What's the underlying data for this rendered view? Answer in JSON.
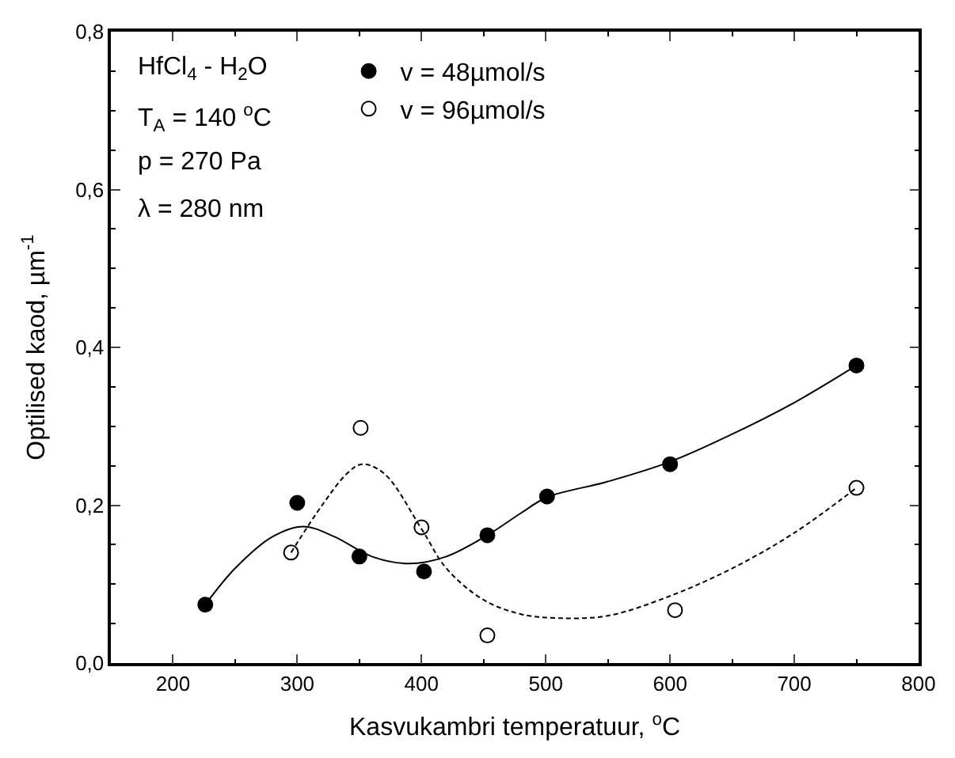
{
  "chart_data": {
    "type": "scatter",
    "xlabel": "Kasvukambri temperatuur, $^{o}$C",
    "ylabel": "Optilised kaod, µm$^{-1}$",
    "annotations": [
      "HfCl$_{4}$ - H$_{2}$O",
      "T$_{A}$ = 140 $^{o}$C",
      "p = 270 Pa",
      "λ = 280 nm"
    ],
    "xlim": [
      150,
      800
    ],
    "xticks": [
      200,
      300,
      400,
      500,
      600,
      700,
      800
    ],
    "ylim": [
      0,
      0.8
    ],
    "yticks": [
      {
        "value": 0,
        "label": "0,0"
      },
      {
        "value": 0.2,
        "label": "0,2"
      },
      {
        "value": 0.4,
        "label": "0,4"
      },
      {
        "value": 0.6,
        "label": "0,6"
      },
      {
        "value": 0.8,
        "label": "0,8"
      }
    ],
    "legend": "top",
    "series": [
      {
        "name": "v = 48µmol/s",
        "marker": "circle",
        "color": "#000000",
        "line_style": "solid",
        "x": [
          226,
          300,
          350,
          402,
          453,
          501,
          600,
          750
        ],
        "values": [
          0.074,
          0.203,
          0.135,
          0.116,
          0.162,
          0.211,
          0.252,
          0.377
        ]
      },
      {
        "name": "v = 96µmol/s",
        "marker": "circle",
        "color": "#ffffff",
        "line_style": "dashed",
        "x": [
          295,
          351,
          400,
          453,
          604,
          750
        ],
        "values": [
          0.14,
          0.298,
          0.172,
          0.035,
          0.067,
          0.222
        ]
      },
      {
        "type": "line",
        "color": "#000000",
        "line_style": "solid",
        "x": [
          226,
          250,
          280,
          305,
          330,
          360,
          390,
          420,
          453,
          480,
          501,
          550,
          600,
          650,
          700,
          750
        ],
        "values": [
          0.074,
          0.12,
          0.16,
          0.173,
          0.16,
          0.135,
          0.126,
          0.135,
          0.162,
          0.19,
          0.21,
          0.23,
          0.255,
          0.29,
          0.33,
          0.377
        ]
      },
      {
        "type": "line",
        "color": "#000000",
        "line_style": "dashed",
        "x": [
          295,
          320,
          340,
          352,
          370,
          400,
          420,
          450,
          480,
          510,
          550,
          600,
          650,
          700,
          750
        ],
        "values": [
          0.14,
          0.2,
          0.24,
          0.252,
          0.24,
          0.17,
          0.12,
          0.08,
          0.062,
          0.057,
          0.06,
          0.085,
          0.12,
          0.165,
          0.222
        ]
      }
    ]
  }
}
